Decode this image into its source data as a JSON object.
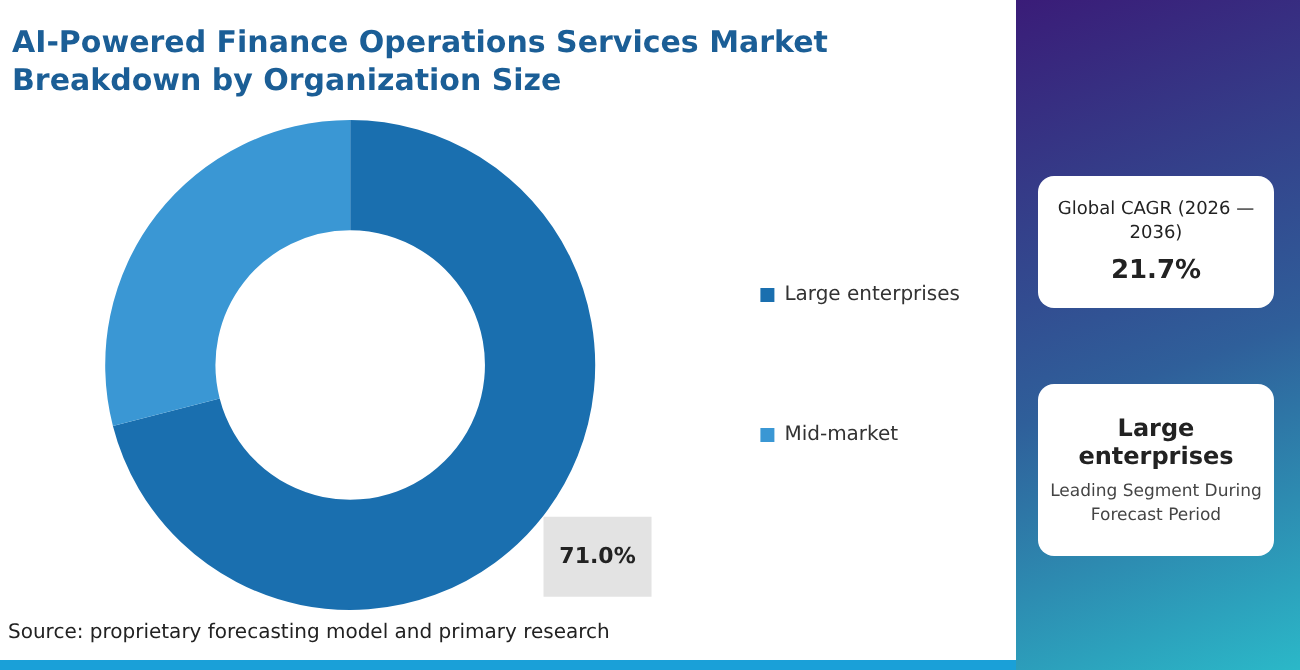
{
  "chart_data": {
    "type": "donut",
    "title": "AI-Powered Finance Operations Services Market Breakdown by Organization Size",
    "categories": [
      "Large enterprises",
      "Mid-market"
    ],
    "values": [
      71.0,
      29.0
    ],
    "colors": [
      "#1a6faf",
      "#3a97d4"
    ],
    "value_labels": [
      "71.0%",
      null
    ],
    "legend": "right",
    "annotations": [
      "Global CAGR (2026 — 2036)",
      "21.7%",
      "Large enterprises",
      "Leading Segment During Forecast Period",
      "Source: proprietary forecasting model and primary research"
    ]
  }
}
